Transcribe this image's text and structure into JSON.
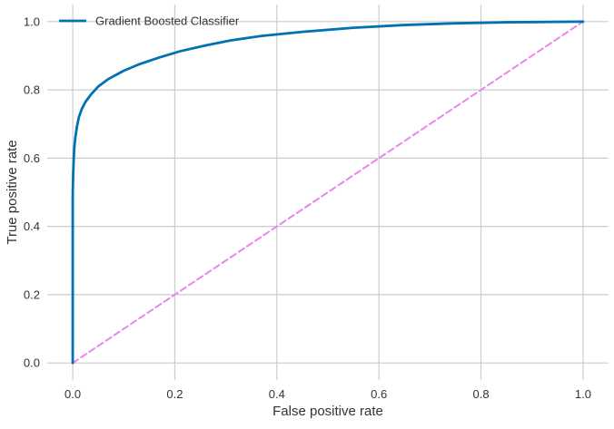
{
  "chart_data": {
    "type": "line",
    "title": "",
    "xlabel": "False positive rate",
    "ylabel": "True positive rate",
    "xlim": [
      -0.05,
      1.05
    ],
    "ylim": [
      -0.05,
      1.05
    ],
    "xticks": [
      0.0,
      0.2,
      0.4,
      0.6,
      0.8,
      1.0
    ],
    "yticks": [
      0.0,
      0.2,
      0.4,
      0.6,
      0.8,
      1.0
    ],
    "xtick_labels": [
      "0.0",
      "0.2",
      "0.4",
      "0.6",
      "0.8",
      "1.0"
    ],
    "ytick_labels": [
      "0.0",
      "0.2",
      "0.4",
      "0.6",
      "0.8",
      "1.0"
    ],
    "grid": true,
    "legend_position": "top-left",
    "series": [
      {
        "name": "Gradient Boosted Classifier",
        "color": "#0072b2",
        "style": "solid",
        "x": [
          0.0,
          0.0,
          0.001,
          0.002,
          0.003,
          0.005,
          0.008,
          0.012,
          0.018,
          0.025,
          0.035,
          0.05,
          0.07,
          0.1,
          0.13,
          0.17,
          0.21,
          0.26,
          0.31,
          0.37,
          0.45,
          0.55,
          0.65,
          0.75,
          0.85,
          0.93,
          1.0
        ],
        "y": [
          0.0,
          0.5,
          0.56,
          0.6,
          0.63,
          0.66,
          0.69,
          0.72,
          0.745,
          0.765,
          0.785,
          0.81,
          0.832,
          0.856,
          0.875,
          0.895,
          0.913,
          0.93,
          0.945,
          0.958,
          0.97,
          0.982,
          0.99,
          0.995,
          0.998,
          0.999,
          1.0
        ]
      },
      {
        "name": "",
        "color": "#ee82ee",
        "style": "dashed",
        "x": [
          0.0,
          1.0
        ],
        "y": [
          0.0,
          1.0
        ]
      }
    ]
  }
}
